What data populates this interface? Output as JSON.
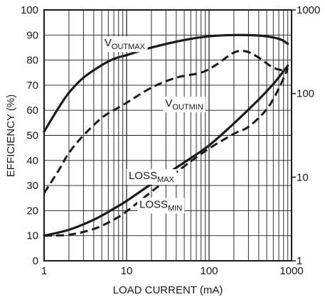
{
  "chart_data": {
    "type": "line",
    "xlabel": "LOAD CURRENT (mA)",
    "ylabel": "EFFICIENCY (%)",
    "xscale": "log",
    "xlim": [
      1,
      1000
    ],
    "ylim": [
      0,
      100
    ],
    "y2scale": "log",
    "y2lim": [
      1,
      1000
    ],
    "x_ticks": [
      {
        "value": 1,
        "label": "1"
      },
      {
        "value": 10,
        "label": "10"
      },
      {
        "value": 100,
        "label": "100"
      },
      {
        "value": 1000,
        "label": "1000"
      }
    ],
    "y_ticks": [
      {
        "value": 0,
        "label": "0"
      },
      {
        "value": 10,
        "label": "10"
      },
      {
        "value": 20,
        "label": "20"
      },
      {
        "value": 30,
        "label": "30"
      },
      {
        "value": 40,
        "label": "40"
      },
      {
        "value": 50,
        "label": "50"
      },
      {
        "value": 60,
        "label": "60"
      },
      {
        "value": 70,
        "label": "70"
      },
      {
        "value": 80,
        "label": "80"
      },
      {
        "value": 90,
        "label": "90"
      },
      {
        "value": 100,
        "label": "100"
      }
    ],
    "y2_ticks": [
      {
        "value": 1,
        "label": "1"
      },
      {
        "value": 10,
        "label": "10"
      },
      {
        "value": 100,
        "label": "100"
      },
      {
        "value": 1000,
        "label": "1000"
      }
    ],
    "grid": true,
    "series": [
      {
        "id": "vout-max",
        "label_main": "V",
        "label_sub": "OUTMAX",
        "style": "solid",
        "axis": "left",
        "label_at": {
          "x": 9.5,
          "y": 85.5
        },
        "points": [
          [
            1,
            51.5
          ],
          [
            1.5,
            61
          ],
          [
            2,
            67
          ],
          [
            3,
            73
          ],
          [
            5,
            78
          ],
          [
            7,
            80.5
          ],
          [
            10,
            82
          ],
          [
            20,
            85
          ],
          [
            50,
            88
          ],
          [
            100,
            89.5
          ],
          [
            200,
            90
          ],
          [
            400,
            89.8
          ],
          [
            700,
            88.5
          ],
          [
            900,
            86.5
          ]
        ]
      },
      {
        "id": "vout-min",
        "label_main": "V",
        "label_sub": "OUTMIN",
        "style": "dashed",
        "axis": "left",
        "label_at": {
          "x": 50,
          "y": 61.5
        },
        "points": [
          [
            1,
            27
          ],
          [
            1.5,
            36
          ],
          [
            2,
            43
          ],
          [
            3,
            50
          ],
          [
            5,
            57
          ],
          [
            7,
            60
          ],
          [
            10,
            63
          ],
          [
            20,
            69
          ],
          [
            40,
            73
          ],
          [
            80,
            75
          ],
          [
            120,
            78
          ],
          [
            200,
            83
          ],
          [
            280,
            83.5
          ],
          [
            400,
            81
          ],
          [
            600,
            77
          ],
          [
            900,
            75.5
          ]
        ]
      },
      {
        "id": "loss-max",
        "label_main": "LOSS",
        "label_sub": "MAX",
        "style": "solid",
        "axis": "right",
        "label_at": {
          "x": 20,
          "y": 9.5
        },
        "points": [
          [
            1,
            2.0
          ],
          [
            2,
            2.35
          ],
          [
            4,
            3.1
          ],
          [
            7,
            4.2
          ],
          [
            10,
            5.2
          ],
          [
            20,
            8.3
          ],
          [
            50,
            15
          ],
          [
            100,
            24
          ],
          [
            200,
            44
          ],
          [
            400,
            85
          ],
          [
            600,
            130
          ],
          [
            900,
            215
          ]
        ]
      },
      {
        "id": "loss-min",
        "label_main": "LOSS",
        "label_sub": "MIN",
        "style": "dashed",
        "axis": "right",
        "label_at": {
          "x": 26,
          "y": 4.3
        },
        "points": [
          [
            1,
            2.0
          ],
          [
            2,
            2.05
          ],
          [
            4,
            2.4
          ],
          [
            7,
            3.1
          ],
          [
            10,
            3.9
          ],
          [
            20,
            6.7
          ],
          [
            50,
            13.5
          ],
          [
            100,
            22
          ],
          [
            200,
            33
          ],
          [
            300,
            40
          ],
          [
            500,
            65
          ],
          [
            700,
            115
          ],
          [
            900,
            200
          ]
        ]
      }
    ]
  }
}
